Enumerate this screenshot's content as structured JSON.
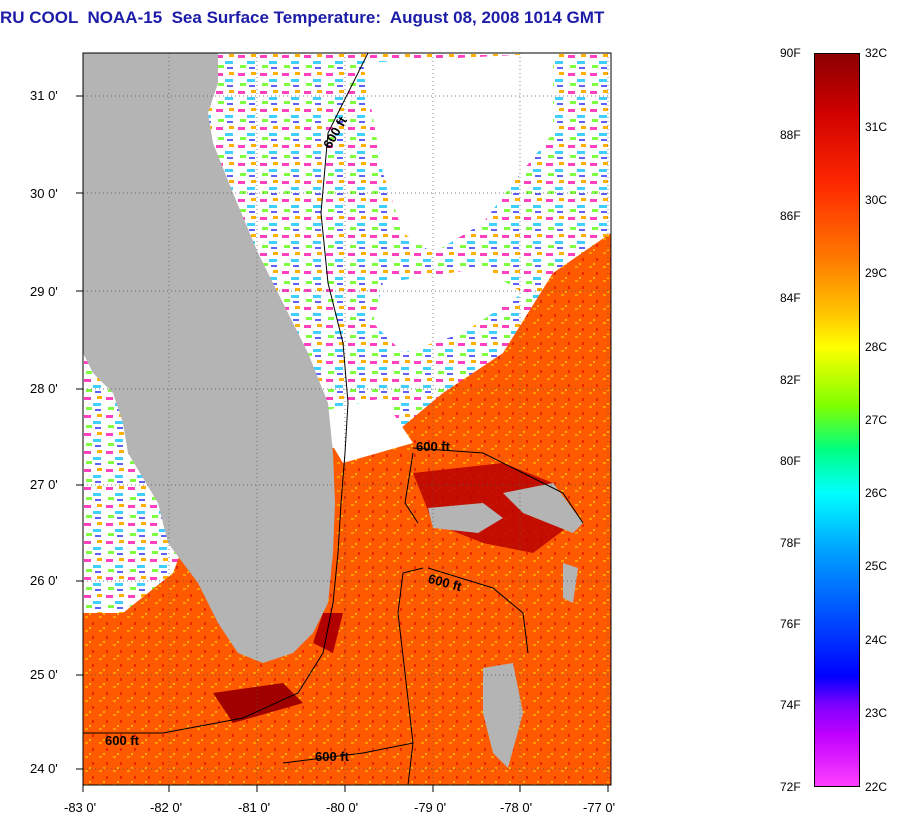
{
  "title": "RU COOL  NOAA-15  Sea Surface Temperature:  August 08, 2008 1014 GMT",
  "map": {
    "lat_ticks": [
      "31 0'",
      "30 0'",
      "29 0'",
      "28 0'",
      "27 0'",
      "26 0'",
      "25 0'",
      "24 0'"
    ],
    "lon_ticks": [
      "-83 0'",
      "-82 0'",
      "-81 0'",
      "-80 0'",
      "-79 0'",
      "-78 0'",
      "-77 0'"
    ],
    "contour_labels": [
      "600 ft",
      "600 ft",
      "600 ft",
      "600 ft",
      "600 ft"
    ],
    "colors": {
      "land": "#b4b4b4",
      "cloud": "#ffffff",
      "warm": "#ff3c00",
      "hot": "#c80000"
    }
  },
  "colorbar": {
    "f_labels": [
      "90F",
      "88F",
      "86F",
      "84F",
      "82F",
      "80F",
      "78F",
      "76F",
      "74F",
      "72F"
    ],
    "c_labels": [
      "32C",
      "31C",
      "30C",
      "29C",
      "28C",
      "27C",
      "26C",
      "25C",
      "24C",
      "23C",
      "22C"
    ]
  }
}
